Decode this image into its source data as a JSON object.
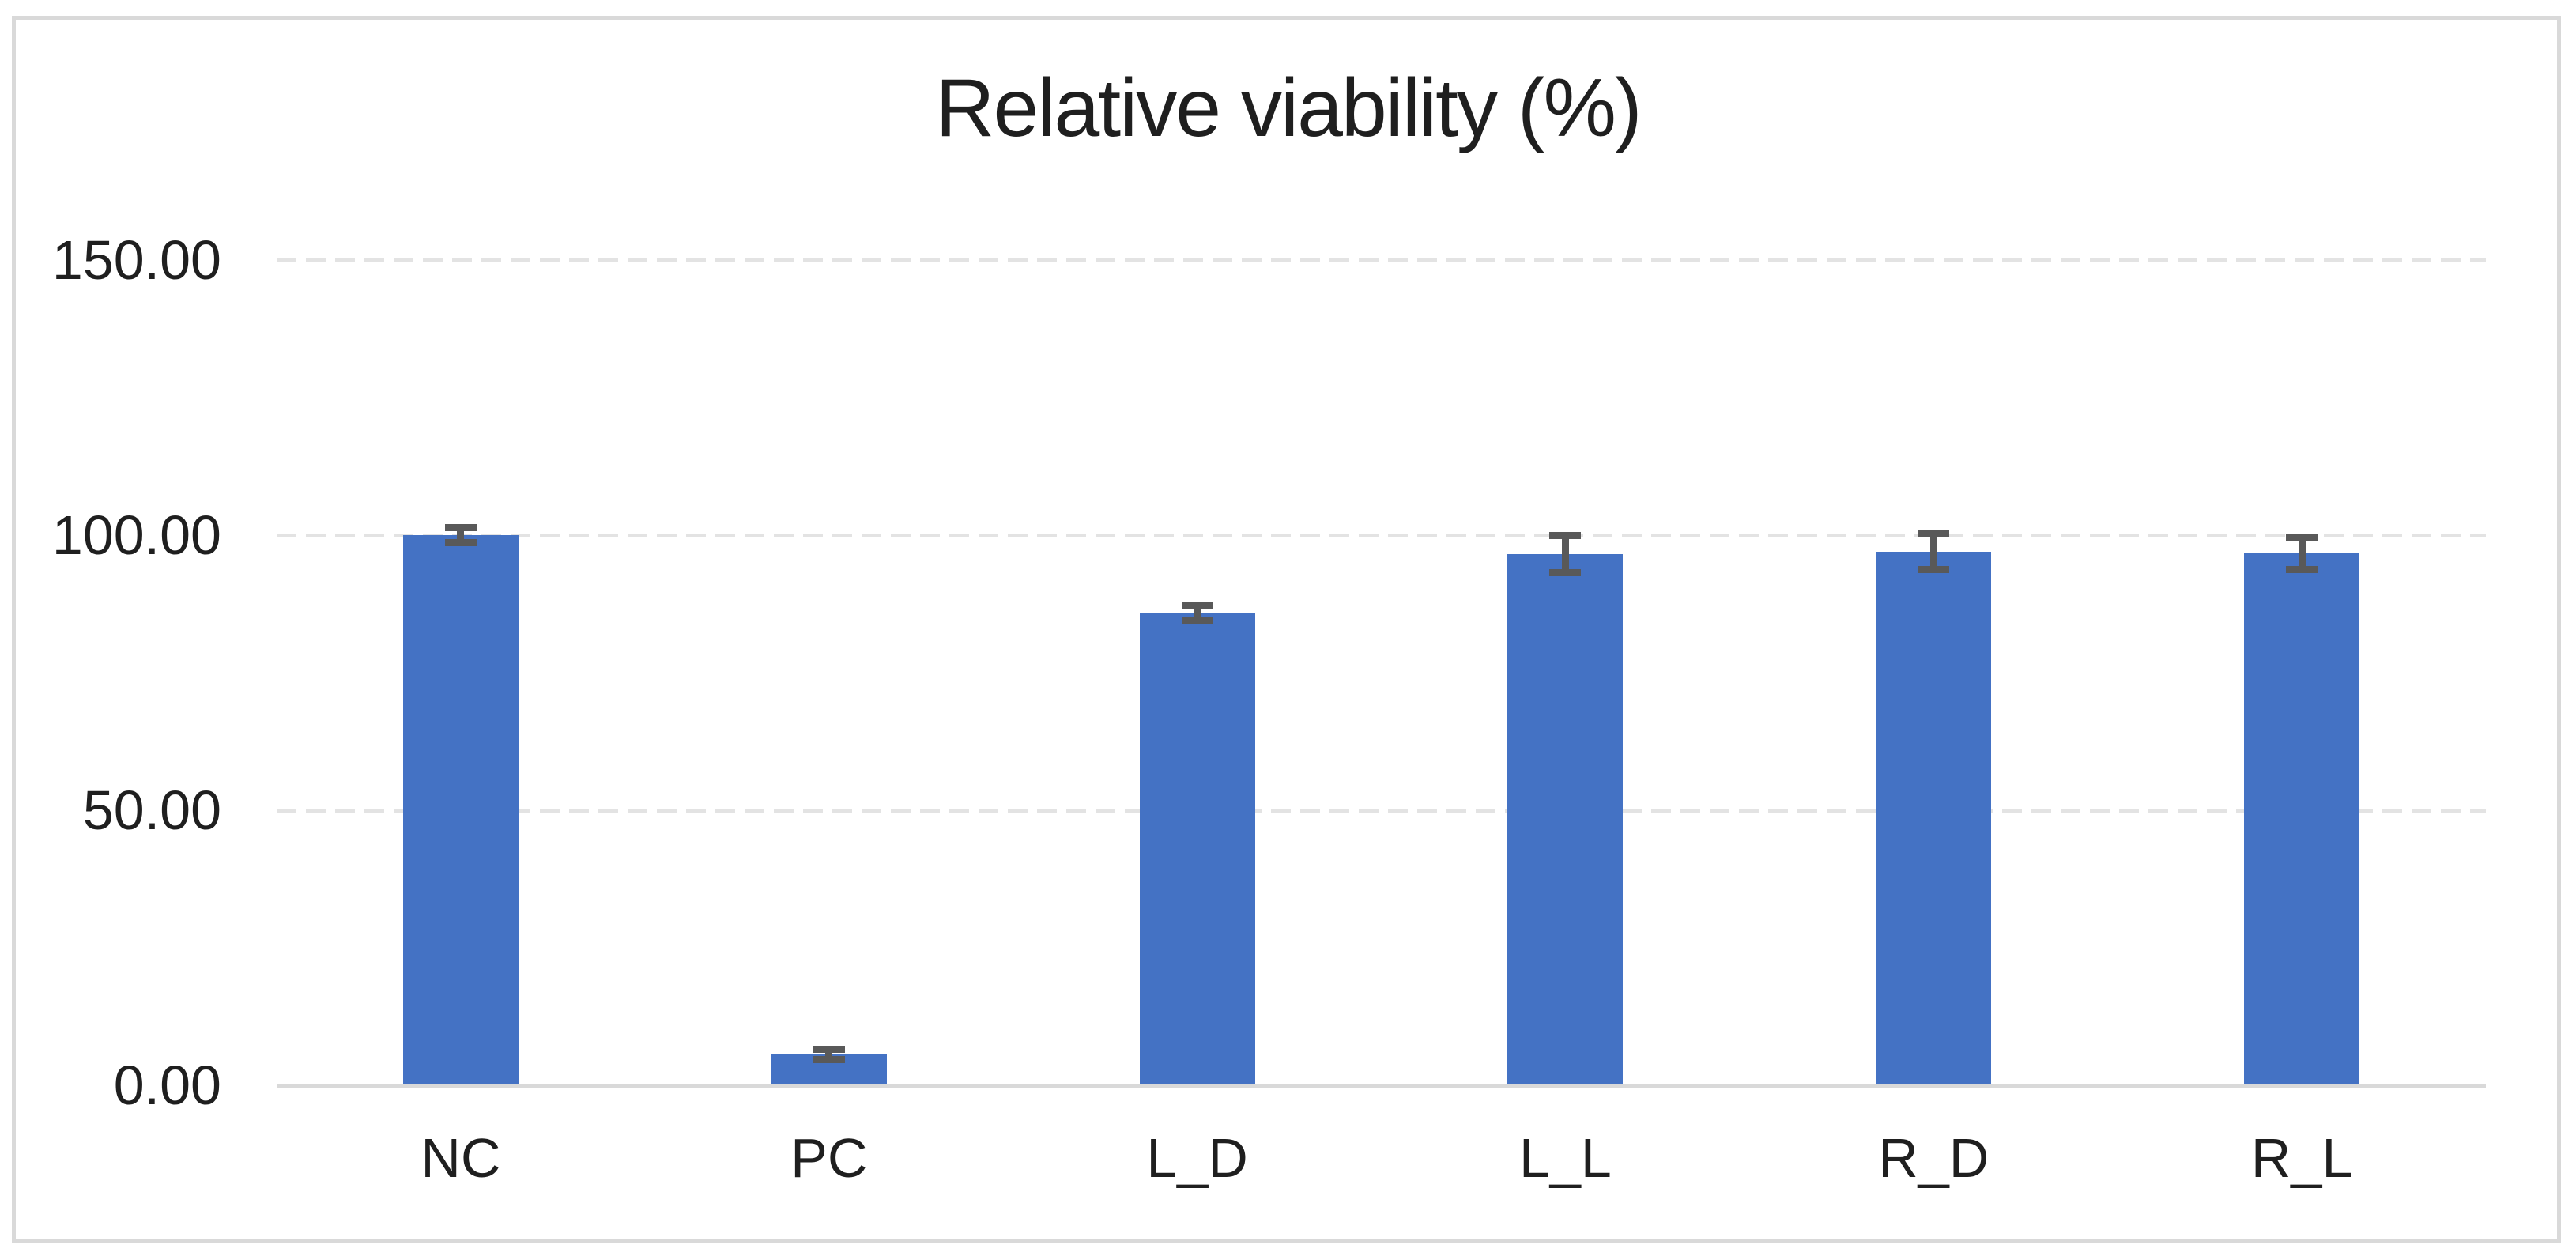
{
  "chart_data": {
    "type": "bar",
    "title": "Relative viability (%)",
    "categories": [
      "NC",
      "PC",
      "L_D",
      "L_L",
      "R_D",
      "R_L"
    ],
    "values": [
      100.0,
      5.6,
      85.9,
      96.6,
      97.0,
      96.7
    ],
    "error_bars": [
      1.4,
      0.9,
      1.3,
      3.4,
      3.3,
      3.0
    ],
    "xlabel": "",
    "ylabel": "",
    "ylim": [
      0,
      150
    ],
    "yticks": [
      0,
      50,
      100,
      150
    ],
    "ytick_labels": [
      "0.00",
      "50.00",
      "100.00",
      "150.00"
    ],
    "grid": "horizontal-dashed",
    "legend": "none",
    "colors": {
      "bar": "#4472C4",
      "error_bar": "#595959",
      "gridline": "#E3E3E3",
      "axis_line": "#D9D9D9",
      "text": "#1f1f1f",
      "frame_border": "#D9D9D9",
      "background": "#FFFFFF"
    }
  }
}
